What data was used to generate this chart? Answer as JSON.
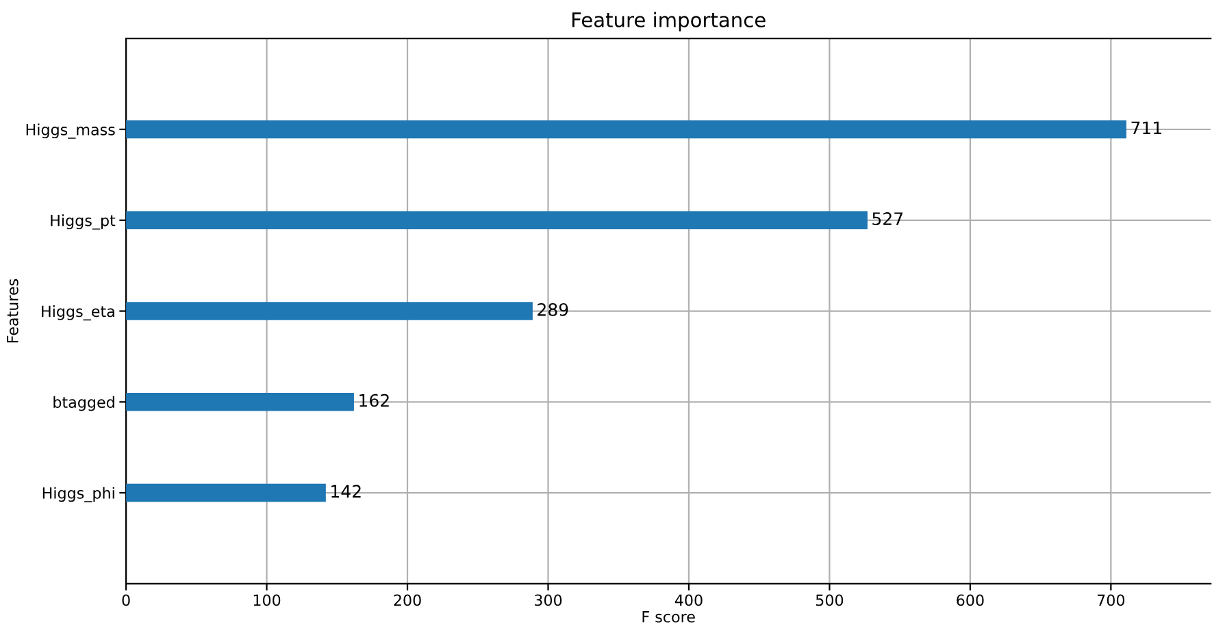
{
  "chart_data": {
    "type": "bar",
    "orientation": "horizontal",
    "title": "Feature importance",
    "xlabel": "F score",
    "ylabel": "Features",
    "categories": [
      "Higgs_mass",
      "Higgs_pt",
      "Higgs_eta",
      "btagged",
      "Higgs_phi"
    ],
    "values": [
      711,
      527,
      289,
      162,
      142
    ],
    "color": "#1f77b4",
    "xlim": [
      0,
      771
    ],
    "xticks": [
      0,
      100,
      200,
      300,
      400,
      500,
      600,
      700
    ],
    "grid": true,
    "data_labels": true
  }
}
